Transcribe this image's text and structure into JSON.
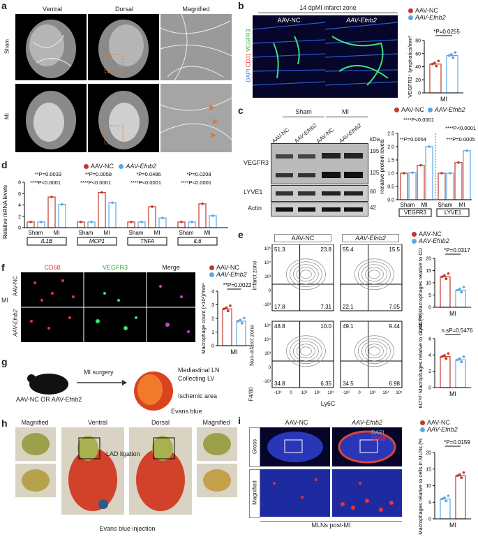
{
  "panel_a": {
    "label": "a",
    "cols": [
      "Ventral",
      "Dorsal",
      "Magnified"
    ],
    "rows": [
      "Sham",
      "MI"
    ]
  },
  "panel_b": {
    "label": "b",
    "title": "14 dpMI infarct zone",
    "groups": [
      "AAV-NC",
      "AAV-Efnb2"
    ],
    "stain": {
      "dapi": "DAPI",
      "cd31": "CD31",
      "vegfr3": "VEGFR3"
    },
    "pval": "*P=0.0255",
    "ylabel": "VEGFR3⁺ lymphatics/mm²",
    "xlabel": "MI",
    "yticks": [
      "0",
      "20",
      "40",
      "60",
      "80"
    ],
    "legend": [
      "AAV-NC",
      "AAV-Efnb2"
    ]
  },
  "panel_c": {
    "label": "c",
    "groups": [
      "Sham",
      "MI"
    ],
    "lanes": [
      "AAV-NC",
      "AAV-Efnb2",
      "AAV-NC",
      "AAV-Efnb2"
    ],
    "kda": "kDa",
    "bands": [
      "VEGFR3",
      "LYVE1",
      "Actin"
    ],
    "markers": [
      "195",
      "125",
      "60",
      "42"
    ],
    "ylabel": "Relative protein levels",
    "yticks": [
      "0.0",
      "0.5",
      "1.0",
      "1.5",
      "2.0",
      "2.5"
    ],
    "xcats": [
      "Sham",
      "MI",
      "Sham",
      "MI"
    ],
    "xgroups": [
      "VEGFR3",
      "LYVE1"
    ],
    "pvals": [
      "****P<0.0001",
      "**P=0.0054",
      "****P<0.0001",
      "***P=0.0005"
    ]
  },
  "panel_d": {
    "label": "d",
    "ylabel": "Relative mRNA levels",
    "yticks": [
      "0",
      "2",
      "4",
      "6",
      "8"
    ],
    "genes": [
      "IL1B",
      "MCP1",
      "TNFA",
      "IL6"
    ],
    "xcats": [
      "Sham",
      "MI"
    ],
    "pvals_top": [
      "**P=0.0033",
      "**P=0.0058",
      "*P=0.0486",
      "*P=0.0208"
    ],
    "pvals_bot": [
      "****P<0.0001",
      "****P<0.0001",
      "****P<0.0001",
      "****P<0.0001"
    ]
  },
  "panel_e": {
    "label": "e",
    "groups": [
      "AAV-NC",
      "AAV-Efnb2"
    ],
    "zones": [
      "Infarct zone",
      "Non-infarct zone"
    ],
    "xlabel": "Ly6C",
    "ylabel": "F4/80",
    "quads": [
      [
        "51.3",
        "23.8",
        "17.8",
        "7.31"
      ],
      [
        "55.4",
        "15.5",
        "22.1",
        "7.05"
      ],
      [
        "48.8",
        "10.0",
        "34.8",
        "6.35"
      ],
      [
        "49.1",
        "9.44",
        "34.5",
        "6.98"
      ]
    ],
    "yticks": [
      "10⁵",
      "10⁴",
      "10³",
      "0",
      "-10³"
    ],
    "xticks": [
      "-10³",
      "0",
      "10³",
      "10⁴",
      "10⁵"
    ],
    "plot1": {
      "pval": "*P=0.0317",
      "ylabel": "Ly6Cʰⁱᵍʰ Macrophages relative to CD45 (%)",
      "yticks": [
        "0",
        "5",
        "10",
        "15",
        "20"
      ],
      "xlabel": "MI"
    },
    "plot2": {
      "pval": "n.sP=0.5476",
      "ylabel": "Ly6Cʰⁱᵍʰ Macrophages relative to CD45 (%)",
      "yticks": [
        "0",
        "2",
        "4",
        "6"
      ],
      "xlabel": "MI"
    }
  },
  "panel_f": {
    "label": "f",
    "cols": [
      "CD68",
      "VEGFR3",
      "Merge"
    ],
    "rows": [
      "AAV-NC",
      "AAV-Efnb2"
    ],
    "side": "MI",
    "pval": "**P=0.0022",
    "ylabel": "Macrophage count (×10³)/mm²",
    "yticks": [
      "0",
      "1",
      "2",
      "3",
      "4"
    ],
    "xlabel": "MI"
  },
  "panel_g": {
    "label": "g",
    "mouse": "AAV-NC OR AAV-Efnb2",
    "surgery": "MI surgery",
    "evans": "Evans blue",
    "labels": [
      "Mediastinal LN",
      "Collecting LV",
      "Ischemic area"
    ]
  },
  "panel_h": {
    "label": "h",
    "cols": [
      "Magnified",
      "Ventral",
      "Dorsal",
      "Magnified"
    ],
    "lad": "LAD ligation",
    "evans": "Evans blue injection"
  },
  "panel_i": {
    "label": "i",
    "groups": [
      "AAV-NC",
      "AAV-Efnb2"
    ],
    "rows": [
      "Gross",
      "Magnified"
    ],
    "stain": [
      "DAPI",
      "CD68"
    ],
    "caption": "MLNs post-MI",
    "pval": "*P=0.0159",
    "ylabel": "Macrophages relative to cells in MLNs (%)",
    "yticks": [
      "0",
      "5",
      "10",
      "15",
      "20"
    ],
    "xlabel": "MI"
  },
  "legend": {
    "nc": "AAV-NC",
    "ef": "AAV-Efnb2",
    "nc_color": "#c0392b",
    "ef_color": "#5aa7e6"
  },
  "chart_data": [
    {
      "type": "bar",
      "ref": "b",
      "categories": [
        "AAV-NC",
        "AAV-Efnb2"
      ],
      "values": [
        44,
        57
      ],
      "ylim": [
        0,
        80
      ],
      "xlabel": "MI"
    },
    {
      "type": "bar",
      "ref": "c",
      "categories": [
        "VEGFR3 Sham NC",
        "VEGFR3 Sham Efnb2",
        "VEGFR3 MI NC",
        "VEGFR3 MI Efnb2",
        "LYVE1 Sham NC",
        "LYVE1 Sham Efnb2",
        "LYVE1 MI NC",
        "LYVE1 MI Efnb2"
      ],
      "values": [
        1.0,
        1.02,
        1.3,
        2.0,
        1.0,
        1.0,
        1.4,
        1.85
      ],
      "ylim": [
        0,
        2.5
      ]
    },
    {
      "type": "bar",
      "ref": "d",
      "categories": [
        "IL1B Sham NC",
        "IL1B Sham Ef",
        "IL1B MI NC",
        "IL1B MI Ef",
        "MCP1 Sham NC",
        "MCP1 Sham Ef",
        "MCP1 MI NC",
        "MCP1 MI Ef",
        "TNFA Sham NC",
        "TNFA Sham Ef",
        "TNFA MI NC",
        "TNFA MI Ef",
        "IL6 Sham NC",
        "IL6 Sham Ef",
        "IL6 MI NC",
        "IL6 MI Ef"
      ],
      "values": [
        1.0,
        1.0,
        5.4,
        4.1,
        1.0,
        1.0,
        6.2,
        4.4,
        1.0,
        1.0,
        3.7,
        1.7,
        1.0,
        1.0,
        4.2,
        2.1
      ],
      "ylim": [
        0,
        8
      ]
    },
    {
      "type": "bar",
      "ref": "e1",
      "categories": [
        "AAV-NC",
        "AAV-Efnb2"
      ],
      "values": [
        12.5,
        7.0
      ],
      "ylim": [
        0,
        20
      ]
    },
    {
      "type": "bar",
      "ref": "e2",
      "categories": [
        "AAV-NC",
        "AAV-Efnb2"
      ],
      "values": [
        3.8,
        3.4
      ],
      "ylim": [
        0,
        6
      ]
    },
    {
      "type": "bar",
      "ref": "f",
      "categories": [
        "AAV-NC",
        "AAV-Efnb2"
      ],
      "values": [
        2.7,
        1.8
      ],
      "ylim": [
        0,
        4
      ]
    },
    {
      "type": "bar",
      "ref": "i",
      "categories": [
        "AAV-NC",
        "AAV-Efnb2"
      ],
      "values": [
        6.0,
        13.0
      ],
      "ylim": [
        0,
        20
      ]
    }
  ]
}
